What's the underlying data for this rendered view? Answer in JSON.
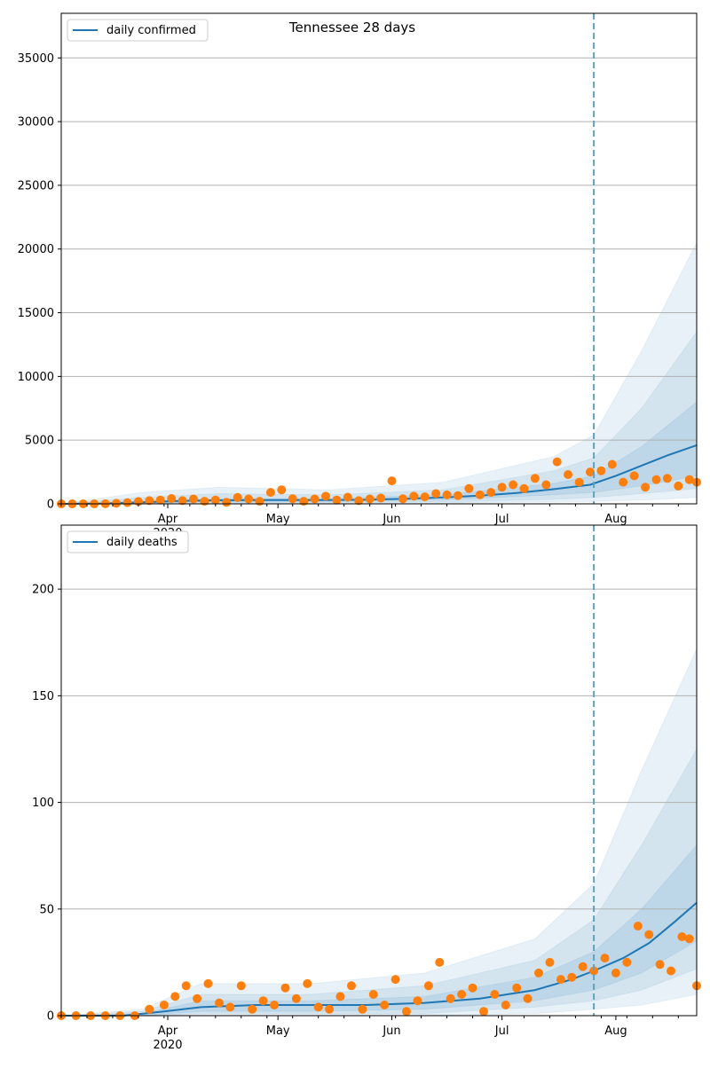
{
  "chart_data": [
    {
      "type": "line",
      "title": "Tennessee 28 days",
      "xlabel": "",
      "ylabel": "",
      "ylim": [
        0,
        38500
      ],
      "yticks": [
        0,
        5000,
        10000,
        15000,
        20000,
        25000,
        30000,
        35000
      ],
      "xrange": [
        "2020-03-03",
        "2020-08-23"
      ],
      "xticks": [
        {
          "date": "2020-04-01",
          "label": "Apr",
          "sublabel": "2020"
        },
        {
          "date": "2020-05-01",
          "label": "May",
          "sublabel": ""
        },
        {
          "date": "2020-06-01",
          "label": "Jun",
          "sublabel": ""
        },
        {
          "date": "2020-07-01",
          "label": "Jul",
          "sublabel": ""
        },
        {
          "date": "2020-08-01",
          "label": "Aug",
          "sublabel": ""
        }
      ],
      "forecast_start": "2020-07-26",
      "grid": "y",
      "legend": {
        "position": "top-left",
        "entries": [
          "daily confirmed"
        ]
      },
      "colors": {
        "line": "#1f77b4",
        "points": "#ff7f0e",
        "band": "#1f77b4",
        "vline": "#5fa2bd"
      },
      "series": [
        {
          "name": "daily confirmed",
          "kind": "median",
          "x": [
            "2020-03-03",
            "2020-03-15",
            "2020-03-25",
            "2020-04-05",
            "2020-04-15",
            "2020-04-25",
            "2020-05-05",
            "2020-05-15",
            "2020-05-25",
            "2020-06-05",
            "2020-06-15",
            "2020-06-25",
            "2020-07-05",
            "2020-07-15",
            "2020-07-25",
            "2020-08-01",
            "2020-08-08",
            "2020-08-15",
            "2020-08-23"
          ],
          "values": [
            0,
            30,
            120,
            240,
            280,
            300,
            300,
            300,
            320,
            400,
            500,
            650,
            850,
            1150,
            1500,
            2200,
            3000,
            3800,
            4600
          ]
        },
        {
          "name": "observed",
          "kind": "points",
          "x": [
            "2020-03-03",
            "2020-03-06",
            "2020-03-09",
            "2020-03-12",
            "2020-03-15",
            "2020-03-18",
            "2020-03-21",
            "2020-03-24",
            "2020-03-27",
            "2020-03-30",
            "2020-04-02",
            "2020-04-05",
            "2020-04-08",
            "2020-04-11",
            "2020-04-14",
            "2020-04-17",
            "2020-04-20",
            "2020-04-23",
            "2020-04-26",
            "2020-04-29",
            "2020-05-02",
            "2020-05-05",
            "2020-05-08",
            "2020-05-11",
            "2020-05-14",
            "2020-05-17",
            "2020-05-20",
            "2020-05-23",
            "2020-05-26",
            "2020-05-29",
            "2020-06-01",
            "2020-06-04",
            "2020-06-07",
            "2020-06-10",
            "2020-06-13",
            "2020-06-16",
            "2020-06-19",
            "2020-06-22",
            "2020-06-25",
            "2020-06-28",
            "2020-07-01",
            "2020-07-04",
            "2020-07-07",
            "2020-07-10",
            "2020-07-13",
            "2020-07-16",
            "2020-07-19",
            "2020-07-22",
            "2020-07-25",
            "2020-07-28",
            "2020-07-31",
            "2020-08-03",
            "2020-08-06",
            "2020-08-09",
            "2020-08-12",
            "2020-08-15",
            "2020-08-18",
            "2020-08-21",
            "2020-08-23"
          ],
          "values": [
            0,
            0,
            0,
            0,
            10,
            40,
            100,
            180,
            250,
            300,
            420,
            250,
            380,
            200,
            300,
            120,
            500,
            380,
            200,
            900,
            1100,
            400,
            200,
            380,
            600,
            300,
            520,
            250,
            380,
            450,
            1800,
            400,
            600,
            550,
            800,
            700,
            650,
            1200,
            700,
            900,
            1300,
            1500,
            1200,
            2000,
            1500,
            3300,
            2300,
            1700,
            2500,
            2600,
            3100,
            1700,
            2200,
            1300,
            1900,
            2000,
            1400,
            1900,
            1700
          ]
        }
      ],
      "bands": [
        {
          "name": "50%",
          "x": [
            "2020-03-03",
            "2020-03-25",
            "2020-04-15",
            "2020-05-15",
            "2020-06-15",
            "2020-07-15",
            "2020-07-26",
            "2020-08-08",
            "2020-08-23"
          ],
          "lower": [
            0,
            60,
            150,
            180,
            300,
            700,
            900,
            1400,
            2200
          ],
          "upper": [
            0,
            200,
            420,
            420,
            700,
            1600,
            2200,
            4500,
            8000
          ]
        },
        {
          "name": "80%",
          "x": [
            "2020-03-03",
            "2020-03-25",
            "2020-04-15",
            "2020-05-15",
            "2020-06-15",
            "2020-07-15",
            "2020-07-26",
            "2020-08-08",
            "2020-08-23"
          ],
          "lower": [
            0,
            20,
            80,
            100,
            150,
            350,
            500,
            800,
            1200
          ],
          "upper": [
            0,
            500,
            800,
            700,
            1100,
            2600,
            3600,
            7500,
            13500
          ]
        },
        {
          "name": "95%",
          "x": [
            "2020-03-03",
            "2020-03-25",
            "2020-04-15",
            "2020-05-15",
            "2020-06-15",
            "2020-07-15",
            "2020-07-26",
            "2020-08-08",
            "2020-08-23"
          ],
          "lower": [
            0,
            0,
            20,
            40,
            60,
            150,
            200,
            300,
            500
          ],
          "upper": [
            0,
            900,
            1300,
            1100,
            1700,
            3700,
            5400,
            12000,
            20500
          ]
        }
      ]
    },
    {
      "type": "line",
      "title": "",
      "xlabel": "",
      "ylabel": "",
      "ylim": [
        0,
        230
      ],
      "yticks": [
        0,
        50,
        100,
        150,
        200
      ],
      "xrange": [
        "2020-03-03",
        "2020-08-23"
      ],
      "xticks": [
        {
          "date": "2020-04-01",
          "label": "Apr",
          "sublabel": "2020"
        },
        {
          "date": "2020-05-01",
          "label": "May",
          "sublabel": ""
        },
        {
          "date": "2020-06-01",
          "label": "Jun",
          "sublabel": ""
        },
        {
          "date": "2020-07-01",
          "label": "Jul",
          "sublabel": ""
        },
        {
          "date": "2020-08-01",
          "label": "Aug",
          "sublabel": ""
        }
      ],
      "forecast_start": "2020-07-26",
      "grid": "y",
      "legend": {
        "position": "top-left",
        "entries": [
          "daily deaths"
        ]
      },
      "colors": {
        "line": "#1f77b4",
        "points": "#ff7f0e",
        "band": "#1f77b4",
        "vline": "#5fa2bd"
      },
      "series": [
        {
          "name": "daily deaths",
          "kind": "median",
          "x": [
            "2020-03-03",
            "2020-03-20",
            "2020-03-31",
            "2020-04-10",
            "2020-04-25",
            "2020-05-10",
            "2020-05-25",
            "2020-06-10",
            "2020-06-25",
            "2020-07-10",
            "2020-07-20",
            "2020-07-26",
            "2020-08-03",
            "2020-08-10",
            "2020-08-17",
            "2020-08-23"
          ],
          "values": [
            0,
            0,
            2,
            4,
            5,
            5,
            5,
            6,
            8,
            12,
            17,
            21,
            27,
            34,
            44,
            53
          ]
        },
        {
          "name": "observed",
          "kind": "points",
          "x": [
            "2020-03-03",
            "2020-03-07",
            "2020-03-11",
            "2020-03-15",
            "2020-03-19",
            "2020-03-23",
            "2020-03-27",
            "2020-03-31",
            "2020-04-03",
            "2020-04-06",
            "2020-04-09",
            "2020-04-12",
            "2020-04-15",
            "2020-04-18",
            "2020-04-21",
            "2020-04-24",
            "2020-04-27",
            "2020-04-30",
            "2020-05-03",
            "2020-05-06",
            "2020-05-09",
            "2020-05-12",
            "2020-05-15",
            "2020-05-18",
            "2020-05-21",
            "2020-05-24",
            "2020-05-27",
            "2020-05-30",
            "2020-06-02",
            "2020-06-05",
            "2020-06-08",
            "2020-06-11",
            "2020-06-14",
            "2020-06-17",
            "2020-06-20",
            "2020-06-23",
            "2020-06-26",
            "2020-06-29",
            "2020-07-02",
            "2020-07-05",
            "2020-07-08",
            "2020-07-11",
            "2020-07-14",
            "2020-07-17",
            "2020-07-20",
            "2020-07-23",
            "2020-07-26",
            "2020-07-29",
            "2020-08-01",
            "2020-08-04",
            "2020-08-07",
            "2020-08-10",
            "2020-08-13",
            "2020-08-16",
            "2020-08-19",
            "2020-08-21",
            "2020-08-23"
          ],
          "values": [
            0,
            0,
            0,
            0,
            0,
            0,
            3,
            5,
            9,
            14,
            8,
            15,
            6,
            4,
            14,
            3,
            7,
            5,
            13,
            8,
            15,
            4,
            3,
            9,
            14,
            3,
            10,
            5,
            17,
            2,
            7,
            14,
            25,
            8,
            10,
            13,
            2,
            10,
            5,
            13,
            8,
            20,
            25,
            17,
            18,
            23,
            21,
            27,
            20,
            25,
            42,
            38,
            24,
            21,
            37,
            36,
            14
          ]
        }
      ],
      "bands": [
        {
          "name": "50%",
          "x": [
            "2020-03-03",
            "2020-03-25",
            "2020-04-10",
            "2020-05-10",
            "2020-06-10",
            "2020-07-10",
            "2020-07-26",
            "2020-08-08",
            "2020-08-23"
          ],
          "lower": [
            0,
            0,
            2,
            2,
            3,
            7,
            12,
            20,
            35
          ],
          "upper": [
            0,
            1,
            7,
            7,
            9,
            18,
            30,
            50,
            80
          ]
        },
        {
          "name": "80%",
          "x": [
            "2020-03-03",
            "2020-03-25",
            "2020-04-10",
            "2020-05-10",
            "2020-06-10",
            "2020-07-10",
            "2020-07-26",
            "2020-08-08",
            "2020-08-23"
          ],
          "lower": [
            0,
            0,
            1,
            1,
            1,
            4,
            7,
            12,
            22
          ],
          "upper": [
            0,
            2,
            10,
            10,
            14,
            26,
            45,
            80,
            125
          ]
        },
        {
          "name": "95%",
          "x": [
            "2020-03-03",
            "2020-03-25",
            "2020-04-10",
            "2020-05-10",
            "2020-06-10",
            "2020-07-10",
            "2020-07-26",
            "2020-08-08",
            "2020-08-23"
          ],
          "lower": [
            0,
            0,
            0,
            0,
            0,
            1,
            3,
            5,
            10
          ],
          "upper": [
            0,
            3,
            15,
            15,
            20,
            36,
            62,
            115,
            172
          ]
        }
      ]
    }
  ]
}
